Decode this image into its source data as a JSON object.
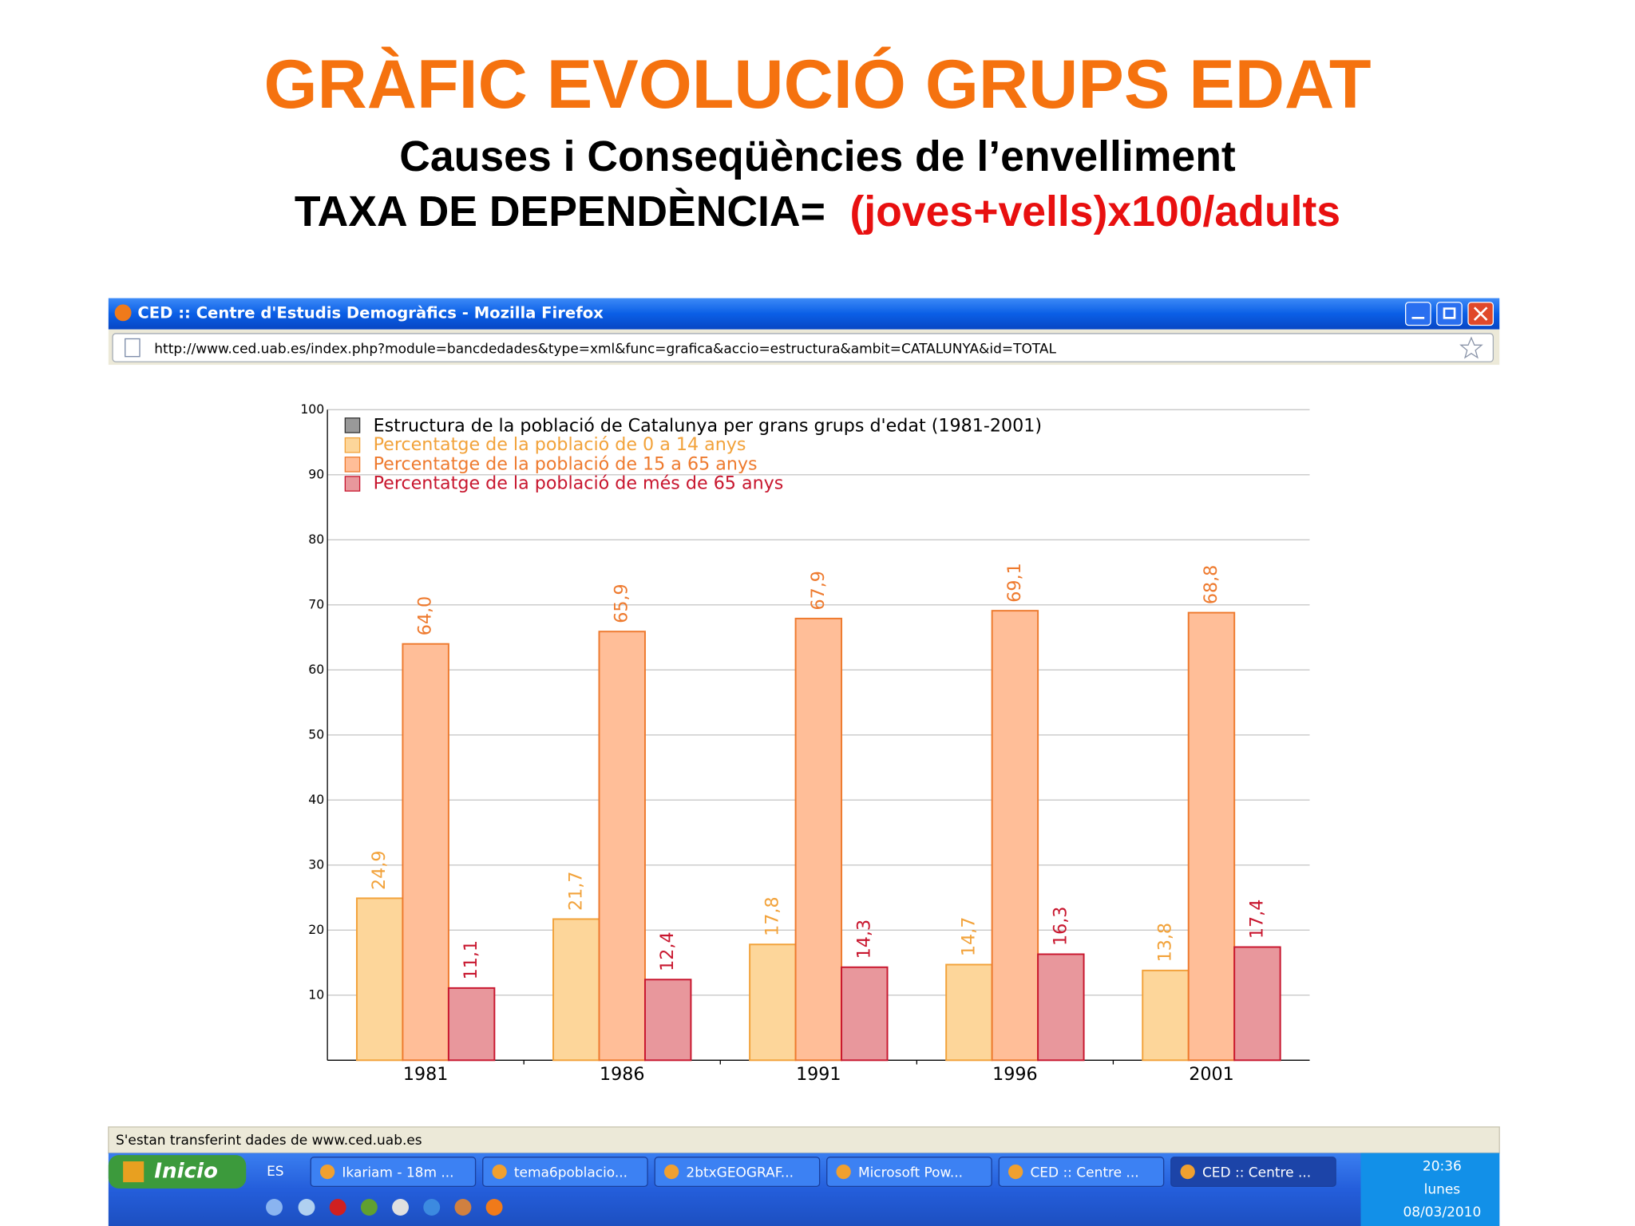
{
  "slide": {
    "title": "GRÀFIC EVOLUCIÓ GRUPS EDAT",
    "subtitle": "Causes i Conseqüències de l’envelliment",
    "formula_label": "TAXA DE DEPENDÈNCIA=",
    "formula": "(joves+vells)x100/adults"
  },
  "browser": {
    "title": "CED :: Centre d'Estudis Demogràfics - Mozilla Firefox",
    "url": "http://www.ced.uab.es/index.php?module=bancdedades&type=xml&func=grafica&accio=estructura&ambit=CATALUNYA&id=TOTAL",
    "status": "S'estan transferint dades de www.ced.uab.es"
  },
  "chart_data": {
    "type": "bar",
    "title": "Estructura de la població de Catalunya per grans grups d'edat (1981-2001)",
    "categories": [
      "1981",
      "1986",
      "1991",
      "1996",
      "2001"
    ],
    "series": [
      {
        "name": "Percentatge de la població de 0 a 14 anys",
        "color": "#fdd69a",
        "edgecolor": "#f2a23a",
        "values": [
          24.9,
          21.7,
          17.8,
          14.7,
          13.8
        ],
        "value_labels": [
          "24,9",
          "21,7",
          "17,8",
          "14,7",
          "13,8"
        ]
      },
      {
        "name": "Percentatge de la població de 15 a 65 anys",
        "color": "#ffbe98",
        "edgecolor": "#ee7a2e",
        "values": [
          64.0,
          65.9,
          67.9,
          69.1,
          68.8
        ],
        "value_labels": [
          "64,0",
          "65,9",
          "67,9",
          "69,1",
          "68,8"
        ]
      },
      {
        "name": "Percentatge de la població de més de 65 anys",
        "color": "#e8979c",
        "edgecolor": "#c8162e",
        "values": [
          11.1,
          12.4,
          14.3,
          16.3,
          17.4
        ],
        "value_labels": [
          "11,1",
          "12,4",
          "14,3",
          "16,3",
          "17,4"
        ]
      }
    ],
    "ylim": [
      0,
      100
    ],
    "yticks": [
      10,
      20,
      30,
      40,
      50,
      60,
      70,
      80,
      90,
      100
    ],
    "grid": true
  },
  "taskbar": {
    "start": "Inicio",
    "language": "ES",
    "items": [
      "Ikariam - 18m ...",
      "tema6poblacio...",
      "2btxGEOGRAF...",
      "Microsoft Pow...",
      "CED :: Centre ...",
      "CED :: Centre ..."
    ],
    "clock": {
      "time": "20:36",
      "day": "lunes",
      "date": "08/03/2010"
    }
  }
}
